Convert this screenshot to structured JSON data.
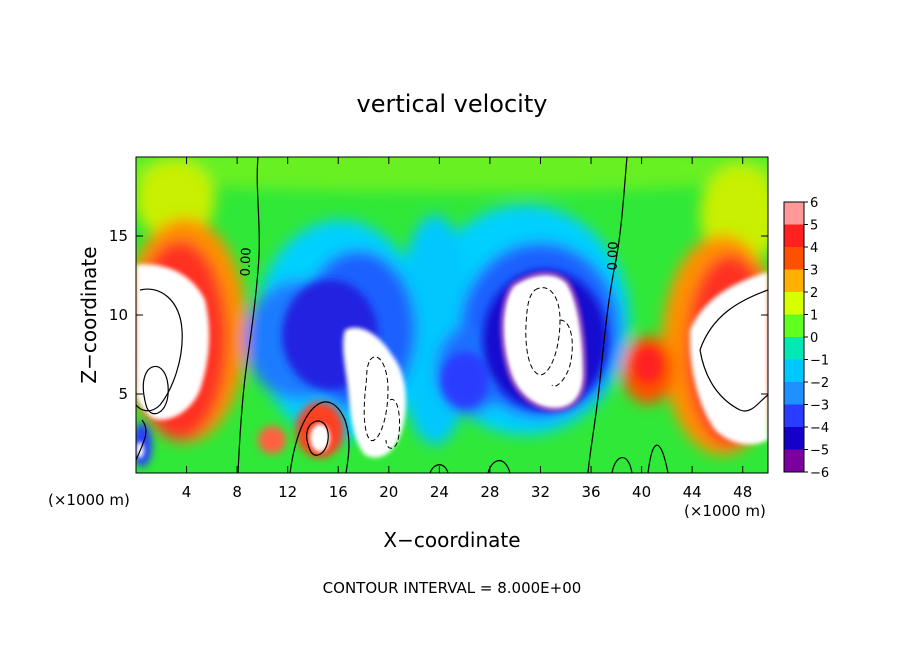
{
  "chart_data": {
    "type": "heatmap",
    "title": "vertical velocity",
    "xlabel": "X−coordinate",
    "ylabel": "Z−coordinate",
    "x_unit_left": "(×1000 m)",
    "x_unit_right": "(×1000 m)",
    "xlim": [
      0,
      50
    ],
    "ylim": [
      0,
      20
    ],
    "x_ticks": [
      4,
      8,
      12,
      16,
      20,
      24,
      28,
      32,
      36,
      40,
      44,
      48
    ],
    "y_ticks": [
      5,
      10,
      15
    ],
    "colorbar": {
      "min": -6,
      "max": 6,
      "ticks": [
        6,
        5,
        4,
        3,
        2,
        1,
        0,
        -1,
        -2,
        -3,
        -4,
        -5,
        -6
      ],
      "tick_labels": [
        "6",
        "5",
        "4",
        "3",
        "2",
        "1",
        "0",
        "−1",
        "−2",
        "−3",
        "−4",
        "−5",
        "−6"
      ],
      "colors": {
        "-6": "#7a00a0",
        "-5": "#1400c8",
        "-4": "#2a3cff",
        "-3": "#1e90ff",
        "-2": "#00c8ff",
        "-1": "#00e8b4",
        "0": "#00e050",
        "1": "#60ff20",
        "2": "#d8ff00",
        "3": "#ffb000",
        "4": "#ff5000",
        "5": "#ff2020",
        "6": "#ff9898"
      }
    },
    "contour_labels": [
      "0.00",
      "0.00"
    ],
    "footnote": "CONTOUR INTERVAL = 8.000E+00",
    "grid": false
  }
}
